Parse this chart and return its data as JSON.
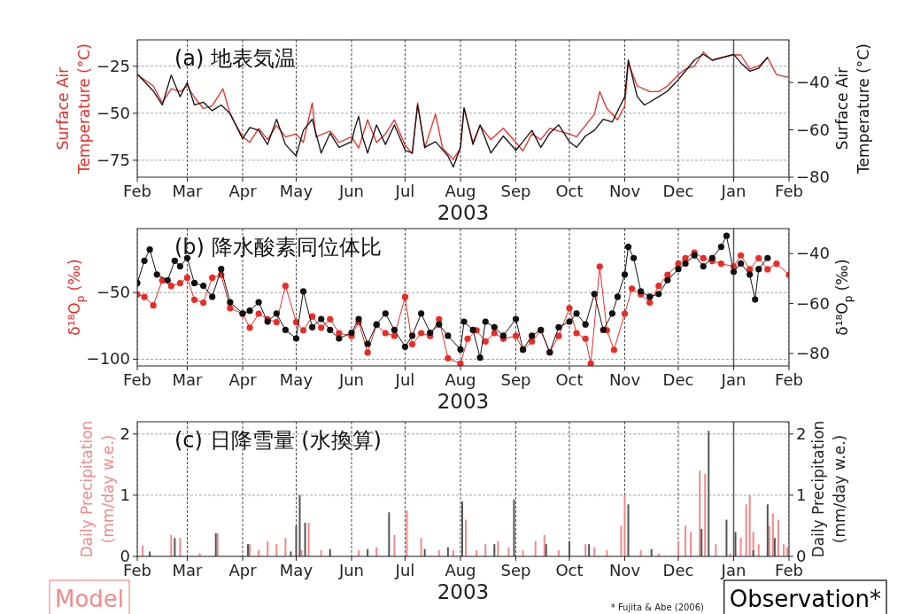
{
  "chart_data": [
    {
      "type": "line",
      "title": "(a) 地表気温",
      "xlabel": "2003",
      "ylabel": "Surface Air\nTemperature (°C)",
      "y2label": "Surface Air\nTemperature (°C)",
      "xlim": [
        "2003-02-01",
        "2004-02-01"
      ],
      "xticks": [
        {
          "value": "2003-02-01",
          "label": "Feb"
        },
        {
          "value": "2003-03-01",
          "label": "Mar"
        },
        {
          "value": "2003-04-01",
          "label": "Apr"
        },
        {
          "value": "2003-05-01",
          "label": "May"
        },
        {
          "value": "2003-06-01",
          "label": "Jun"
        },
        {
          "value": "2003-07-01",
          "label": "Jul"
        },
        {
          "value": "2003-08-01",
          "label": "Aug"
        },
        {
          "value": "2003-09-01",
          "label": "Sep"
        },
        {
          "value": "2003-10-01",
          "label": "Oct"
        },
        {
          "value": "2003-11-01",
          "label": "Nov"
        },
        {
          "value": "2003-12-01",
          "label": "Dec"
        },
        {
          "value": "2004-01-01",
          "label": "Jan"
        },
        {
          "value": "2004-02-01",
          "label": "Feb"
        }
      ],
      "ylim": [
        -84,
        -11
      ],
      "yticks": [
        {
          "value": -25,
          "label": "−25"
        },
        {
          "value": -50,
          "label": "−50"
        },
        {
          "value": -75,
          "label": "−75"
        }
      ],
      "y2lim": [
        -80,
        -22
      ],
      "y2ticks": [
        {
          "value": -40,
          "label": "−40"
        },
        {
          "value": -60,
          "label": "−60"
        },
        {
          "value": -80,
          "label": "−80"
        }
      ],
      "grid": true,
      "ref_lines": [
        {
          "axis": "x",
          "value": "2004-01-01",
          "color": "#555555"
        }
      ],
      "series": [
        {
          "color": "#ee2a24",
          "x": [
            "2003-02-01",
            "2003-02-10",
            "2003-02-15",
            "2003-02-20",
            "2003-02-25",
            "2003-03-01",
            "2003-03-05",
            "2003-03-10",
            "2003-03-15",
            "2003-03-21",
            "2003-03-25",
            "2003-04-01",
            "2003-04-05",
            "2003-04-10",
            "2003-04-15",
            "2003-04-20",
            "2003-04-25",
            "2003-05-01",
            "2003-05-05",
            "2003-05-10",
            "2003-05-12",
            "2003-05-20",
            "2003-05-25",
            "2003-06-01",
            "2003-06-05",
            "2003-06-10",
            "2003-06-15",
            "2003-06-20",
            "2003-06-25",
            "2003-07-01",
            "2003-07-05",
            "2003-07-08",
            "2003-07-12",
            "2003-07-18",
            "2003-07-22",
            "2003-07-28",
            "2003-08-01",
            "2003-08-03",
            "2003-08-08",
            "2003-08-12",
            "2003-08-18",
            "2003-08-25",
            "2003-09-01",
            "2003-09-05",
            "2003-09-10",
            "2003-09-15",
            "2003-09-20",
            "2003-09-25",
            "2003-10-01",
            "2003-10-05",
            "2003-10-10",
            "2003-10-15",
            "2003-10-18",
            "2003-10-22",
            "2003-10-28",
            "2003-11-01",
            "2003-11-03",
            "2003-11-08",
            "2003-11-15",
            "2003-11-20",
            "2003-11-25",
            "2003-12-01",
            "2003-12-05",
            "2003-12-10",
            "2003-12-15",
            "2003-12-20",
            "2004-01-01",
            "2004-01-05",
            "2004-01-10",
            "2004-01-15",
            "2004-01-20",
            "2004-01-25",
            "2004-02-01"
          ],
          "values": [
            -29.5,
            -35.5,
            -44.5,
            -37,
            -38.5,
            -35.5,
            -41.5,
            -47.5,
            -46,
            -37,
            -50.5,
            -62.5,
            -65.5,
            -58,
            -64,
            -56.5,
            -62.5,
            -61,
            -65.5,
            -44.5,
            -62.5,
            -59.5,
            -65.5,
            -62.5,
            -68.5,
            -53.5,
            -65.5,
            -61,
            -53.5,
            -67,
            -71.5,
            -44.5,
            -68.5,
            -50.5,
            -68.5,
            -74.5,
            -68.5,
            -47.5,
            -65.5,
            -56.5,
            -64,
            -58,
            -65.5,
            -70,
            -61,
            -64,
            -58,
            -59.5,
            -61,
            -62.5,
            -56.5,
            -50.5,
            -38.5,
            -47.5,
            -53.5,
            -46,
            -23.5,
            -35.5,
            -38.5,
            -38.5,
            -35.5,
            -29.5,
            -26.5,
            -25,
            -17.5,
            -22,
            -19,
            -19,
            -26.5,
            -25,
            -20.5,
            -29.5,
            -31
          ]
        },
        {
          "color": "#111111",
          "axis": "y2",
          "x": [
            "2003-02-01",
            "2003-02-10",
            "2003-02-15",
            "2003-02-20",
            "2003-02-25",
            "2003-03-01",
            "2003-03-05",
            "2003-03-10",
            "2003-03-15",
            "2003-03-20",
            "2003-03-25",
            "2003-04-01",
            "2003-04-05",
            "2003-04-10",
            "2003-04-15",
            "2003-04-20",
            "2003-04-25",
            "2003-05-01",
            "2003-05-05",
            "2003-05-10",
            "2003-05-15",
            "2003-05-20",
            "2003-05-25",
            "2003-06-01",
            "2003-06-03",
            "2003-06-05",
            "2003-06-07",
            "2003-06-10",
            "2003-06-15",
            "2003-06-20",
            "2003-06-25",
            "2003-07-01",
            "2003-07-05",
            "2003-07-08",
            "2003-07-12",
            "2003-07-18",
            "2003-07-25",
            "2003-07-28",
            "2003-08-01",
            "2003-08-03",
            "2003-08-08",
            "2003-08-12",
            "2003-08-18",
            "2003-08-25",
            "2003-09-01",
            "2003-09-05",
            "2003-09-10",
            "2003-09-15",
            "2003-09-20",
            "2003-09-25",
            "2003-10-01",
            "2003-10-05",
            "2003-10-10",
            "2003-10-15",
            "2003-10-20",
            "2003-10-25",
            "2003-11-01",
            "2003-11-03",
            "2003-11-08",
            "2003-11-12",
            "2003-11-15",
            "2003-11-20",
            "2003-11-25",
            "2003-12-01",
            "2003-12-05",
            "2003-12-10",
            "2003-12-15",
            "2003-12-20",
            "2004-01-01",
            "2004-01-05",
            "2004-01-10",
            "2004-01-15",
            "2004-01-20"
          ],
          "values": [
            -36.4,
            -43.6,
            -49.5,
            -36.9,
            -46,
            -40,
            -49.5,
            -48.3,
            -51.9,
            -49.5,
            -53.1,
            -63.8,
            -59,
            -60.2,
            -66.2,
            -55.5,
            -66.2,
            -71,
            -60.2,
            -55.5,
            -69.8,
            -61.4,
            -67.4,
            -65,
            -59,
            -54.3,
            -62.6,
            -69.8,
            -57.9,
            -66.2,
            -57.9,
            -68.6,
            -69.8,
            -49.5,
            -67.4,
            -65,
            -71,
            -75.7,
            -67.4,
            -50.7,
            -66.2,
            -57.9,
            -69.8,
            -62.6,
            -68.6,
            -65,
            -60.2,
            -67.4,
            -61.4,
            -57.9,
            -65,
            -67.4,
            -62.6,
            -60.2,
            -55.5,
            -56.7,
            -46,
            -30.5,
            -46,
            -49.5,
            -48.3,
            -46,
            -43.6,
            -38.8,
            -35.2,
            -30.5,
            -28.1,
            -30.5,
            -28.1,
            -31.7,
            -35.2,
            -34,
            -29.3
          ]
        }
      ]
    },
    {
      "type": "line",
      "marker": "circle",
      "title": "(b) 降水酸素同位体比",
      "xlabel": "2003",
      "ylabel": "δ¹⁸O$_{p}$ (‰)",
      "y2label": "δ¹⁸O$_{p}$ (‰)",
      "xlim": [
        "2003-02-01",
        "2004-02-01"
      ],
      "xticks": [
        {
          "value": "2003-02-01",
          "label": "Feb"
        },
        {
          "value": "2003-03-01",
          "label": "Mar"
        },
        {
          "value": "2003-04-01",
          "label": "Apr"
        },
        {
          "value": "2003-05-01",
          "label": "May"
        },
        {
          "value": "2003-06-01",
          "label": "Jun"
        },
        {
          "value": "2003-07-01",
          "label": "Jul"
        },
        {
          "value": "2003-08-01",
          "label": "Aug"
        },
        {
          "value": "2003-09-01",
          "label": "Sep"
        },
        {
          "value": "2003-10-01",
          "label": "Oct"
        },
        {
          "value": "2003-11-01",
          "label": "Nov"
        },
        {
          "value": "2003-12-01",
          "label": "Dec"
        },
        {
          "value": "2004-01-01",
          "label": "Jan"
        },
        {
          "value": "2004-02-01",
          "label": "Feb"
        }
      ],
      "ylim": [
        -105,
        -2
      ],
      "yticks": [
        {
          "value": -50,
          "label": "−50"
        },
        {
          "value": -100,
          "label": "−100"
        }
      ],
      "y2lim": [
        -85,
        -30
      ],
      "y2ticks": [
        {
          "value": -40,
          "label": "−40"
        },
        {
          "value": -60,
          "label": "−60"
        },
        {
          "value": -80,
          "label": "−80"
        }
      ],
      "grid": true,
      "ref_lines": [
        {
          "axis": "x",
          "value": "2004-01-01",
          "color": "#555555"
        }
      ],
      "series": [
        {
          "color": "#ee2a24",
          "x": [
            "2003-02-01",
            "2003-02-05",
            "2003-02-10",
            "2003-02-15",
            "2003-02-20",
            "2003-02-25",
            "2003-03-01",
            "2003-03-05",
            "2003-03-10",
            "2003-03-15",
            "2003-03-20",
            "2003-03-25",
            "2003-04-01",
            "2003-04-05",
            "2003-04-10",
            "2003-04-15",
            "2003-04-20",
            "2003-04-25",
            "2003-05-01",
            "2003-05-05",
            "2003-05-10",
            "2003-05-15",
            "2003-05-20",
            "2003-05-25",
            "2003-06-01",
            "2003-06-05",
            "2003-06-10",
            "2003-06-15",
            "2003-06-20",
            "2003-06-25",
            "2003-07-01",
            "2003-07-05",
            "2003-07-10",
            "2003-07-15",
            "2003-07-20",
            "2003-07-25",
            "2003-08-01",
            "2003-08-05",
            "2003-08-10",
            "2003-08-15",
            "2003-08-20",
            "2003-08-25",
            "2003-09-01",
            "2003-09-05",
            "2003-09-10",
            "2003-09-15",
            "2003-09-20",
            "2003-09-25",
            "2003-10-01",
            "2003-10-05",
            "2003-10-10",
            "2003-10-13",
            "2003-10-18",
            "2003-10-22",
            "2003-10-26",
            "2003-11-01",
            "2003-11-05",
            "2003-11-10",
            "2003-11-15",
            "2003-11-20",
            "2003-11-25",
            "2003-12-01",
            "2003-12-05",
            "2003-12-10",
            "2003-12-15",
            "2003-12-20",
            "2003-12-25",
            "2004-01-01",
            "2004-01-05",
            "2004-01-10",
            "2004-01-15",
            "2004-01-20",
            "2004-01-25",
            "2004-02-01"
          ],
          "values": [
            -51.3,
            -53.3,
            -59.6,
            -40.8,
            -45,
            -42.9,
            -38.8,
            -55.4,
            -57.5,
            -38.8,
            -36.7,
            -61.7,
            -65.8,
            -76.3,
            -65.8,
            -70,
            -72.1,
            -45,
            -72.1,
            -78.3,
            -67.9,
            -76.3,
            -70,
            -80.4,
            -82.5,
            -72.1,
            -95,
            -74.2,
            -80.4,
            -82.5,
            -53.3,
            -88.8,
            -80.4,
            -82.5,
            -70,
            -99.2,
            -103.3,
            -84.6,
            -78.3,
            -86.7,
            -80.4,
            -84.6,
            -82.5,
            -92.9,
            -86.7,
            -78.3,
            -95,
            -82.5,
            -61.7,
            -80.4,
            -84.6,
            -103.3,
            -30.4,
            -78.3,
            -92.9,
            -65.8,
            -47.1,
            -51.3,
            -57.5,
            -45,
            -36.7,
            -28.3,
            -24.2,
            -20,
            -24.2,
            -26.3,
            -28.3,
            -30.4,
            -22.1,
            -32.5,
            -24.2,
            -32.5,
            -28.3,
            -36.7
          ]
        },
        {
          "color": "#111111",
          "axis": "y2",
          "x": [
            "2003-02-01",
            "2003-02-05",
            "2003-02-08",
            "2003-02-12",
            "2003-02-18",
            "2003-02-22",
            "2003-02-25",
            "2003-03-01",
            "2003-03-05",
            "2003-03-10",
            "2003-03-15",
            "2003-03-20",
            "2003-03-25",
            "2003-04-01",
            "2003-04-05",
            "2003-04-10",
            "2003-04-15",
            "2003-04-20",
            "2003-04-25",
            "2003-05-01",
            "2003-05-05",
            "2003-05-10",
            "2003-05-15",
            "2003-05-20",
            "2003-05-25",
            "2003-06-01",
            "2003-06-05",
            "2003-06-10",
            "2003-06-15",
            "2003-06-20",
            "2003-06-25",
            "2003-07-01",
            "2003-07-05",
            "2003-07-10",
            "2003-07-15",
            "2003-07-20",
            "2003-07-25",
            "2003-08-01",
            "2003-08-03",
            "2003-08-08",
            "2003-08-12",
            "2003-08-15",
            "2003-08-20",
            "2003-08-25",
            "2003-09-01",
            "2003-09-05",
            "2003-09-10",
            "2003-09-15",
            "2003-09-20",
            "2003-09-25",
            "2003-10-01",
            "2003-10-05",
            "2003-10-10",
            "2003-10-15",
            "2003-10-20",
            "2003-10-25",
            "2003-10-28",
            "2003-11-01",
            "2003-11-03",
            "2003-11-06",
            "2003-11-10",
            "2003-11-15",
            "2003-11-20",
            "2003-11-25",
            "2003-12-01",
            "2003-12-05",
            "2003-12-10",
            "2003-12-15",
            "2003-12-20",
            "2003-12-25",
            "2003-12-28",
            "2004-01-01",
            "2004-01-05",
            "2004-01-10",
            "2004-01-13",
            "2004-01-15",
            "2004-01-20"
          ],
          "values": [
            -51.8,
            -42.9,
            -38.4,
            -48.4,
            -50.7,
            -42.9,
            -45.1,
            -41.8,
            -51.8,
            -52.9,
            -57.3,
            -46.2,
            -59.5,
            -64,
            -62.9,
            -59.5,
            -67.3,
            -64,
            -70.6,
            -74,
            -55.1,
            -69.5,
            -66.2,
            -70.6,
            -74,
            -71.7,
            -66.2,
            -76.2,
            -68.4,
            -64,
            -70.6,
            -77.3,
            -72.9,
            -64,
            -71.7,
            -68.4,
            -72.9,
            -78.4,
            -67.3,
            -70.6,
            -81.7,
            -67.3,
            -69.5,
            -72.9,
            -66.2,
            -78.4,
            -72.9,
            -70.6,
            -79.5,
            -69.5,
            -67.3,
            -64,
            -68.4,
            -56.2,
            -70.6,
            -64,
            -57.3,
            -48.4,
            -37.3,
            -41.8,
            -55.1,
            -57.3,
            -56.2,
            -50.7,
            -46.2,
            -44,
            -40.7,
            -45.1,
            -41.8,
            -37.3,
            -32.9,
            -47.3,
            -44,
            -48.4,
            -58.4,
            -46.2,
            -41.8
          ]
        }
      ]
    },
    {
      "type": "bar",
      "title": "(c) 日降雪量 (水換算)",
      "xlabel": "2003",
      "ylabel": "Daily Precipitation\n(mm/day w.e.)",
      "y2label": "Daily Precipitation\n(mm/day w.e.)",
      "xlim": [
        "2003-02-01",
        "2004-02-01"
      ],
      "xticks": [
        {
          "value": "2003-02-01",
          "label": "Feb"
        },
        {
          "value": "2003-03-01",
          "label": "Mar"
        },
        {
          "value": "2003-04-01",
          "label": "Apr"
        },
        {
          "value": "2003-05-01",
          "label": "May"
        },
        {
          "value": "2003-06-01",
          "label": "Jun"
        },
        {
          "value": "2003-07-01",
          "label": "Jul"
        },
        {
          "value": "2003-08-01",
          "label": "Aug"
        },
        {
          "value": "2003-09-01",
          "label": "Sep"
        },
        {
          "value": "2003-10-01",
          "label": "Oct"
        },
        {
          "value": "2003-11-01",
          "label": "Nov"
        },
        {
          "value": "2003-12-01",
          "label": "Dec"
        },
        {
          "value": "2004-01-01",
          "label": "Jan"
        },
        {
          "value": "2004-02-01",
          "label": "Feb"
        }
      ],
      "ylim": [
        0,
        2.2
      ],
      "yticks": [
        0,
        1,
        2
      ],
      "y2lim": [
        0,
        2.2
      ],
      "y2ticks": [
        0,
        1,
        2
      ],
      "grid": true,
      "legend": "bottom",
      "ref_lines": [
        {
          "axis": "x",
          "value": "2004-01-01",
          "color": "#555555"
        }
      ],
      "annotations": [
        "* Fujita & Abe (2006)"
      ],
      "series": [
        {
          "name": "Model",
          "color": "#f58888",
          "x": [
            "2003-02-04",
            "2003-02-20",
            "2003-02-25",
            "2003-03-08",
            "2003-03-18",
            "2003-04-05",
            "2003-04-10",
            "2003-04-15",
            "2003-04-20",
            "2003-04-25",
            "2003-05-04",
            "2003-05-08",
            "2003-05-15",
            "2003-06-05",
            "2003-06-15",
            "2003-06-25",
            "2003-07-02",
            "2003-07-10",
            "2003-07-20",
            "2003-07-28",
            "2003-08-04",
            "2003-08-10",
            "2003-08-15",
            "2003-08-22",
            "2003-08-28",
            "2003-09-05",
            "2003-09-12",
            "2003-09-17",
            "2003-09-25",
            "2003-10-10",
            "2003-10-15",
            "2003-10-22",
            "2003-10-30",
            "2003-11-01",
            "2003-11-10",
            "2003-11-20",
            "2003-12-01",
            "2003-12-05",
            "2003-12-08",
            "2003-12-13",
            "2003-12-16",
            "2003-12-22",
            "2003-12-30",
            "2004-01-05",
            "2004-01-08",
            "2004-01-10",
            "2004-01-12",
            "2004-01-15",
            "2004-01-21",
            "2004-01-23",
            "2004-01-26",
            "2004-01-29",
            "2004-01-31"
          ],
          "values": [
            0.18,
            0.35,
            0.3,
            0.05,
            0.38,
            0.2,
            0.1,
            0.25,
            0.2,
            0.3,
            0.1,
            0.55,
            0.1,
            0.1,
            0.15,
            0.35,
            0.75,
            0.3,
            0.1,
            0.1,
            0.6,
            0.1,
            0.2,
            0.25,
            0.15,
            0.1,
            0.25,
            0.35,
            0.1,
            0.2,
            0.15,
            0.1,
            0.5,
            1.0,
            0.1,
            0.05,
            0.25,
            0.5,
            0.4,
            1.4,
            1.35,
            0.2,
            0.05,
            0.3,
            0.85,
            1.0,
            0.4,
            0.2,
            0.5,
            0.7,
            0.6,
            0.2,
            0.15
          ]
        },
        {
          "name": "Observation*",
          "color": "#555555",
          "axis": "y2",
          "x": [
            "2003-02-08",
            "2003-02-22",
            "2003-03-17",
            "2003-04-04",
            "2003-04-28",
            "2003-05-01",
            "2003-05-03",
            "2003-05-06",
            "2003-05-20",
            "2003-06-10",
            "2003-06-22",
            "2003-07-12",
            "2003-07-25",
            "2003-08-02",
            "2003-08-20",
            "2003-08-31",
            "2003-09-18",
            "2003-10-01",
            "2003-10-12",
            "2003-11-03",
            "2003-11-16",
            "2003-12-14",
            "2003-12-18",
            "2003-12-28",
            "2004-01-02",
            "2004-01-12",
            "2004-01-20",
            "2004-01-24"
          ],
          "values": [
            0.08,
            0.3,
            0.38,
            0.2,
            0.08,
            0.5,
            1.0,
            0.55,
            0.12,
            0.12,
            0.72,
            0.12,
            0.15,
            0.9,
            0.2,
            0.93,
            0.2,
            0.25,
            0.2,
            0.85,
            0.12,
            0.45,
            2.05,
            0.6,
            0.4,
            0.1,
            0.85,
            0.3
          ]
        }
      ]
    }
  ]
}
